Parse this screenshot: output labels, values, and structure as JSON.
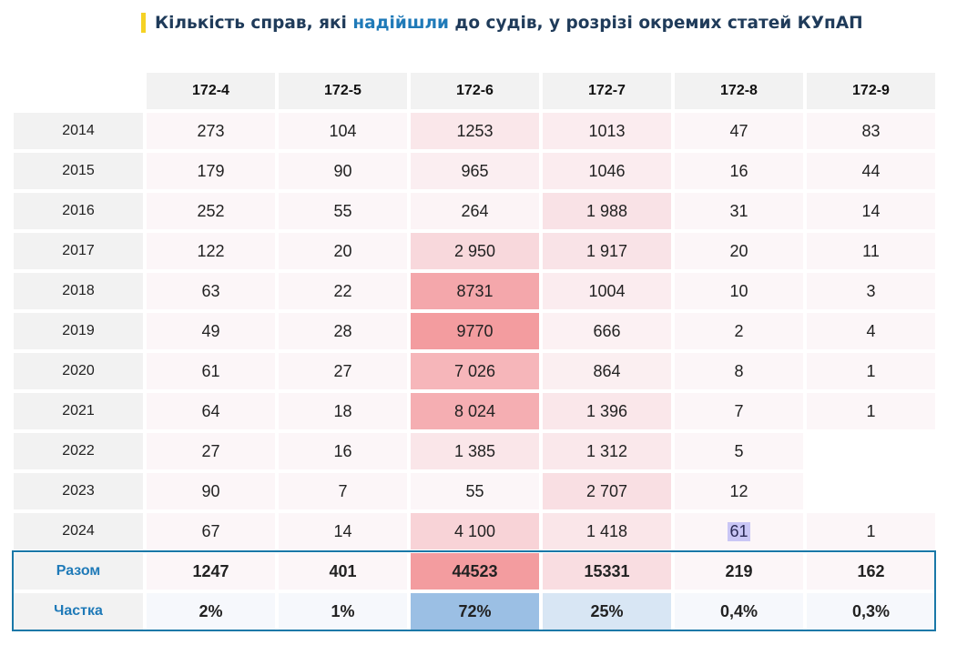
{
  "title": {
    "prefix": "Кількість справ, які ",
    "highlight": "надійшли",
    "suffix": " до судів, у розрізі окремих статей КУпАП"
  },
  "colors": {
    "accent_bar": "#f5d224",
    "title_text": "#1f3b5a",
    "highlight_text": "#1f7ab8",
    "frame_border": "#1a78a8",
    "label_header_bg": "#f2f2f2"
  },
  "columns": [
    "172-4",
    "172-5",
    "172-6",
    "172-7",
    "172-8",
    "172-9"
  ],
  "rows": [
    {
      "year": "2014",
      "values": [
        "273",
        "104",
        "1253",
        "1013",
        "47",
        "83"
      ]
    },
    {
      "year": "2015",
      "values": [
        "179",
        "90",
        "965",
        "1046",
        "16",
        "44"
      ]
    },
    {
      "year": "2016",
      "values": [
        "252",
        "55",
        "264",
        "1 988",
        "31",
        "14"
      ]
    },
    {
      "year": "2017",
      "values": [
        "122",
        "20",
        "2 950",
        "1 917",
        "20",
        "11"
      ]
    },
    {
      "year": "2018",
      "values": [
        "63",
        "22",
        "8731",
        "1004",
        "10",
        "3"
      ]
    },
    {
      "year": "2019",
      "values": [
        "49",
        "28",
        "9770",
        "666",
        "2",
        "4"
      ]
    },
    {
      "year": "2020",
      "values": [
        "61",
        "27",
        "7 026",
        "864",
        "8",
        "1"
      ]
    },
    {
      "year": "2021",
      "values": [
        "64",
        "18",
        "8 024",
        "1 396",
        "7",
        "1"
      ]
    },
    {
      "year": "2022",
      "values": [
        "27",
        "16",
        "1 385",
        "1 312",
        "5",
        ""
      ]
    },
    {
      "year": "2023",
      "values": [
        "90",
        "7",
        "55",
        "2 707",
        "12",
        ""
      ]
    },
    {
      "year": "2024",
      "values": [
        "67",
        "14",
        "4 100",
        "1 418",
        "61",
        "1"
      ]
    }
  ],
  "cell_colors": [
    [
      "#fcf6f8",
      "#fcf6f8",
      "#fae7ea",
      "#fbecef",
      "#fcf6f8",
      "#fcf6f8"
    ],
    [
      "#fcf6f8",
      "#fcf6f8",
      "#fbeef1",
      "#fbecef",
      "#fcf6f8",
      "#fcf6f8"
    ],
    [
      "#fcf6f8",
      "#fcf6f8",
      "#fcf4f6",
      "#f9e2e6",
      "#fcf6f8",
      "#fcf6f8"
    ],
    [
      "#fcf6f8",
      "#fcf6f8",
      "#f8d8dc",
      "#f9e3e7",
      "#fcf6f8",
      "#fcf6f8"
    ],
    [
      "#fcf6f8",
      "#fcf6f8",
      "#f4a7ab",
      "#fbecef",
      "#fcf6f8",
      "#fcf6f8"
    ],
    [
      "#fcf6f8",
      "#fcf6f8",
      "#f39c9f",
      "#fcf1f3",
      "#fcf6f8",
      "#fcf6f8"
    ],
    [
      "#fcf6f8",
      "#fcf6f8",
      "#f6b6ba",
      "#fbeff1",
      "#fcf6f8",
      "#fcf6f8"
    ],
    [
      "#fcf6f8",
      "#fcf6f8",
      "#f5aeb2",
      "#fae7ea",
      "#fcf6f8",
      "#fcf6f8"
    ],
    [
      "#fcf6f8",
      "#fcf6f8",
      "#fae6e9",
      "#fae8eb",
      "#fcf6f8",
      "#ffffff"
    ],
    [
      "#fcf6f8",
      "#fcf6f8",
      "#fcf6f8",
      "#f9dfe3",
      "#fcf6f8",
      "#ffffff"
    ],
    [
      "#fcf6f8",
      "#fcf6f8",
      "#f8d3d7",
      "#fae6e9",
      "#fcf6f8",
      "#fcf6f8"
    ]
  ],
  "selected_cell": {
    "row": 10,
    "col": 4
  },
  "totals": {
    "label": "Разом",
    "values": [
      "1247",
      "401",
      "44523",
      "15331",
      "219",
      "162"
    ],
    "colors": [
      "#fcf6f8",
      "#fcf6f8",
      "#f39c9f",
      "#f9dde1",
      "#fcf6f8",
      "#fcf6f8"
    ]
  },
  "shares": {
    "label": "Частка",
    "values": [
      "2%",
      "1%",
      "72%",
      "25%",
      "0,4%",
      "0,3%"
    ],
    "colors": [
      "#f6f8fc",
      "#f6f8fc",
      "#9bbfe4",
      "#d8e6f4",
      "#f6f8fc",
      "#f6f8fc"
    ]
  }
}
